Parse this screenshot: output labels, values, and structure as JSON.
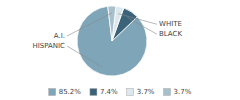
{
  "chart_data": {
    "type": "pie",
    "categories": [
      "HISPANIC",
      "BLACK",
      "WHITE",
      "A.I."
    ],
    "values": [
      85.2,
      7.4,
      3.7,
      3.7
    ],
    "value_labels": [
      "85.2%",
      "7.4%",
      "3.7%",
      "3.7%"
    ],
    "colors": [
      "#7fa5b8",
      "#3a6278",
      "#dce8ee",
      "#a8bfcc"
    ],
    "legend": "bottom"
  }
}
